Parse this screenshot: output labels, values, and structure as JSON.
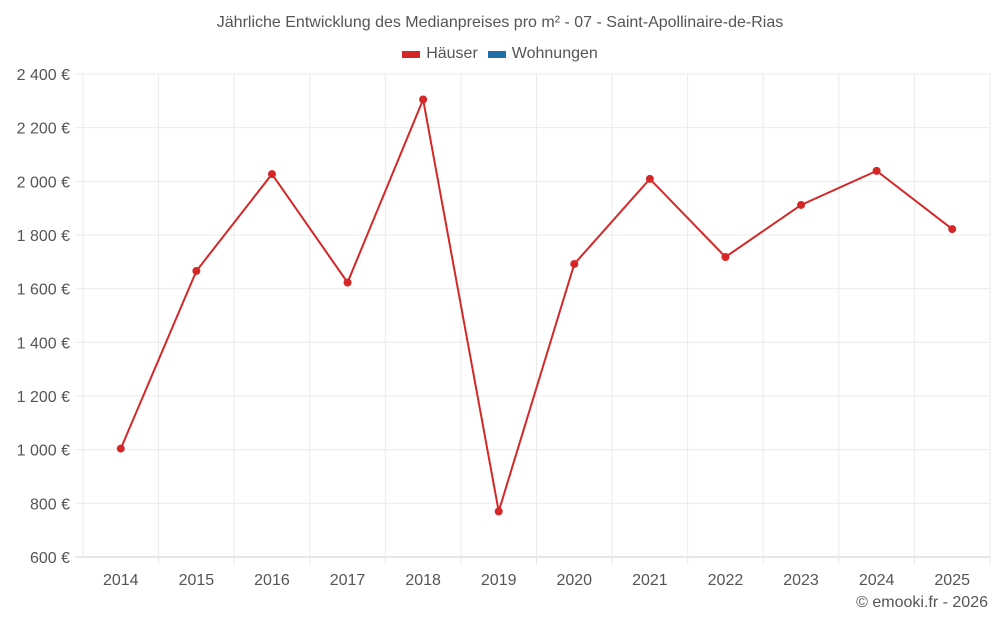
{
  "chart_data": {
    "type": "line",
    "title": "Jährliche Entwicklung des Medianpreises pro m² - 07 - Saint-Apollinaire-de-Rias",
    "xlabel": "",
    "ylabel": "",
    "categories": [
      "2014",
      "2015",
      "2016",
      "2017",
      "2018",
      "2019",
      "2020",
      "2021",
      "2022",
      "2023",
      "2024",
      "2025"
    ],
    "series": [
      {
        "name": "Häuser",
        "color": "#d62728",
        "values": [
          1004,
          1666,
          2027,
          1623,
          2305,
          770,
          1692,
          2009,
          1718,
          1912,
          2039,
          1822
        ]
      },
      {
        "name": "Wohnungen",
        "color": "#1f6fa8",
        "values": []
      }
    ],
    "ylim": [
      600,
      2400
    ],
    "yticks": [
      600,
      800,
      1000,
      1200,
      1400,
      1600,
      1800,
      2000,
      2200,
      2400
    ],
    "ytick_labels": [
      "600 €",
      "800 €",
      "1 000 €",
      "1 200 €",
      "1 400 €",
      "1 600 €",
      "1 800 €",
      "2 000 €",
      "2 200 €",
      "2 400 €"
    ],
    "grid": true,
    "legend_position": "top"
  },
  "header": {
    "title": "Jährliche Entwicklung des Medianpreises pro m² - 07 - Saint-Apollinaire-de-Rias"
  },
  "legend": [
    {
      "label": "Häuser",
      "color": "#d62728"
    },
    {
      "label": "Wohnungen",
      "color": "#1f6fa8"
    }
  ],
  "footer": {
    "credit": "© emooki.fr - 2026"
  }
}
